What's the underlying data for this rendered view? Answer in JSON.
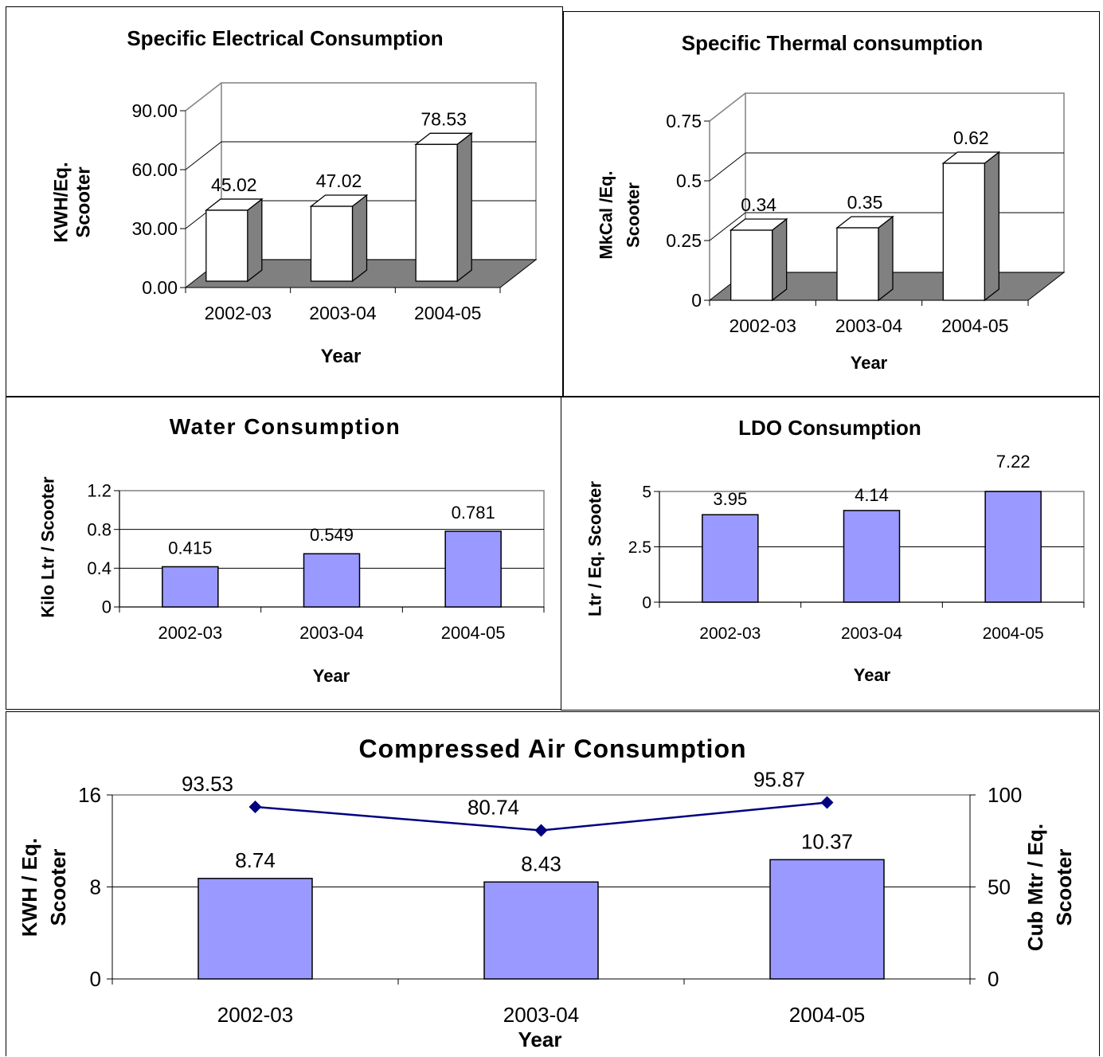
{
  "chart_data": [
    {
      "type": "bar",
      "title": "Specific Electrical Consumption",
      "xlabel": "Year",
      "ylabel_lines": [
        "KWH/Eq.",
        "Scooter"
      ],
      "categories": [
        "2002-03",
        "2003-04",
        "2004-05"
      ],
      "values": [
        45.02,
        47.02,
        78.53
      ],
      "value_labels": [
        "45.02",
        "47.02",
        "78.53"
      ],
      "ylim": [
        0,
        90
      ],
      "yticks": [
        0,
        30,
        60,
        90
      ],
      "ytick_labels": [
        "0.00",
        "30.00",
        "60.00",
        "90.00"
      ],
      "style": "3d",
      "grid": true,
      "colors": {
        "bar_front": "#ffffff",
        "bar_side": "#808080",
        "floor": "#808080"
      }
    },
    {
      "type": "bar",
      "title": "Specific Thermal consumption",
      "xlabel": "Year",
      "ylabel_lines": [
        "MkCal /Eq.",
        "Scooter"
      ],
      "categories": [
        "2002-03",
        "2003-04",
        "2004-05"
      ],
      "values": [
        0.34,
        0.35,
        0.62
      ],
      "value_labels": [
        "0.34",
        "0.35",
        "0.62"
      ],
      "ylim": [
        0,
        0.75
      ],
      "yticks": [
        0,
        0.25,
        0.5,
        0.75
      ],
      "ytick_labels": [
        "0",
        "0.25",
        "0.5",
        "0.75"
      ],
      "style": "3d",
      "grid": true,
      "colors": {
        "bar_front": "#ffffff",
        "bar_side": "#808080",
        "floor": "#808080"
      }
    },
    {
      "type": "bar",
      "title": "Water Consumption",
      "xlabel": "Year",
      "ylabel_lines": [
        "Kilo Ltr / Scooter"
      ],
      "categories": [
        "2002-03",
        "2003-04",
        "2004-05"
      ],
      "values": [
        0.415,
        0.549,
        0.781
      ],
      "value_labels": [
        "0.415",
        "0.549",
        "0.781"
      ],
      "ylim": [
        0,
        1.2
      ],
      "yticks": [
        0,
        0.4,
        0.8,
        1.2
      ],
      "ytick_labels": [
        "0",
        "0.4",
        "0.8",
        "1.2"
      ],
      "grid": true,
      "colors": {
        "bar": "#9999ff"
      }
    },
    {
      "type": "bar",
      "title": "LDO Consumption",
      "xlabel": "Year",
      "ylabel_lines": [
        "Ltr / Eq. Scooter"
      ],
      "categories": [
        "2002-03",
        "2003-04",
        "2004-05"
      ],
      "values": [
        3.95,
        4.14,
        7.22
      ],
      "value_labels": [
        "3.95",
        "4.14",
        "7.22"
      ],
      "ylim": [
        0,
        5
      ],
      "yticks": [
        0,
        2.5,
        5
      ],
      "ytick_labels": [
        "0",
        "2.5",
        "5"
      ],
      "grid": true,
      "colors": {
        "bar": "#9999ff"
      }
    },
    {
      "type": "bar",
      "title": "Compressed Air Consumption",
      "xlabel": "Year",
      "ylabel_lines": [
        "KWH / Eq.",
        "Scooter"
      ],
      "y2label_lines": [
        "Cub Mtr / Eq.",
        "Scooter"
      ],
      "categories": [
        "2002-03",
        "2003-04",
        "2004-05"
      ],
      "values": [
        8.74,
        8.43,
        10.37
      ],
      "value_labels": [
        "8.74",
        "8.43",
        "10.37"
      ],
      "ylim": [
        0,
        16
      ],
      "yticks": [
        0,
        8,
        16
      ],
      "ytick_labels": [
        "0",
        "8",
        "16"
      ],
      "y2lim": [
        0,
        100
      ],
      "y2ticks": [
        0,
        50,
        100
      ],
      "y2tick_labels": [
        "0",
        "50",
        "100"
      ],
      "line_values": [
        93.53,
        80.74,
        95.87
      ],
      "line_labels": [
        "93.53",
        "80.74",
        "95.87"
      ],
      "grid": true,
      "colors": {
        "bar": "#9999ff",
        "line": "#000080"
      }
    }
  ]
}
